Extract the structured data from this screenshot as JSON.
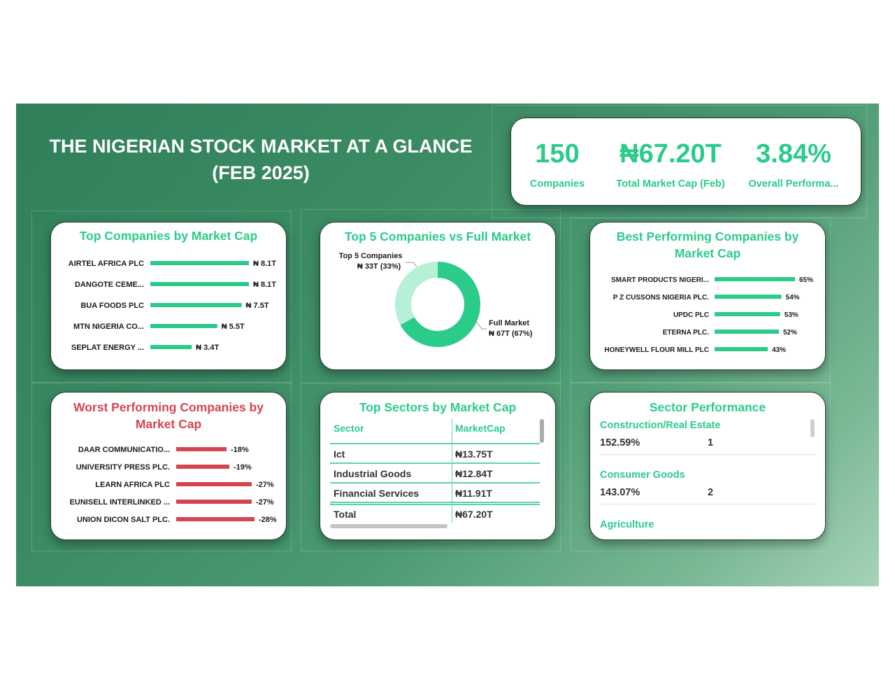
{
  "header": {
    "title_line1": "THE NIGERIAN STOCK MARKET AT A GLANCE",
    "title_line2": "(FEB 2025)"
  },
  "kpis": [
    {
      "value": "150",
      "label": "Companies"
    },
    {
      "value": "₦67.20T",
      "label": "Total Market Cap (Feb)"
    },
    {
      "value": "3.84%",
      "label": "Overall Performa..."
    }
  ],
  "colors": {
    "accent": "#2bcb8a",
    "negative": "#d4464e",
    "accent_light": "#b6f0d6",
    "text": "#1a1a1a"
  },
  "chart_data": [
    {
      "type": "bar",
      "orientation": "horizontal",
      "title": "Top Companies by Market Cap",
      "categories": [
        "AIRTEL AFRICA PLC",
        "DANGOTE CEME...",
        "BUA FOODS PLC",
        "MTN NIGERIA CO...",
        "SEPLAT ENERGY ..."
      ],
      "values": [
        8.1,
        8.1,
        7.5,
        5.5,
        3.4
      ],
      "labels": [
        "₦ 8.1T",
        "₦ 8.1T",
        "₦ 7.5T",
        "₦ 5.5T",
        "₦ 3.4T"
      ]
    },
    {
      "type": "pie",
      "title": "Top 5 Companies vs Full Market",
      "categories": [
        "Top 5 Companies",
        "Full Market"
      ],
      "values": [
        33,
        67
      ],
      "labels": [
        "₦ 33T (33%)",
        "₦ 67T (67%)"
      ]
    },
    {
      "type": "bar",
      "orientation": "horizontal",
      "title": "Best Performing Companies by Market Cap",
      "categories": [
        "SMART PRODUCTS NIGERI...",
        "P Z CUSSONS NIGERIA PLC.",
        "UPDC PLC",
        "ETERNA PLC.",
        "HONEYWELL FLOUR MILL PLC"
      ],
      "values": [
        65,
        54,
        53,
        52,
        43
      ],
      "labels": [
        "65%",
        "54%",
        "53%",
        "52%",
        "43%"
      ]
    },
    {
      "type": "bar",
      "orientation": "horizontal",
      "title": "Worst Performing Companies by Market Cap",
      "categories": [
        "DAAR COMMUNICATIO...",
        "UNIVERSITY PRESS PLC.",
        "LEARN AFRICA PLC",
        "EUNISELL INTERLINKED ...",
        "UNION DICON SALT PLC."
      ],
      "values": [
        -18,
        -19,
        -27,
        -27,
        -28
      ],
      "labels": [
        "-18%",
        "-19%",
        "-27%",
        "-27%",
        "-28%"
      ]
    },
    {
      "type": "table",
      "title": "Top Sectors by Market Cap",
      "columns": [
        "Sector",
        "MarketCap"
      ],
      "rows": [
        [
          "Ict",
          "₦13.75T"
        ],
        [
          "Industrial Goods",
          "₦12.84T"
        ],
        [
          "Financial Services",
          "₦11.91T"
        ]
      ],
      "total": [
        "Total",
        "₦67.20T"
      ]
    },
    {
      "type": "table",
      "title": "Sector Performance",
      "rows": [
        {
          "sector": "Construction/Real Estate",
          "performance": "152.59%",
          "rank": "1"
        },
        {
          "sector": "Consumer Goods",
          "performance": "143.07%",
          "rank": "2"
        },
        {
          "sector": "Agriculture"
        }
      ]
    }
  ]
}
